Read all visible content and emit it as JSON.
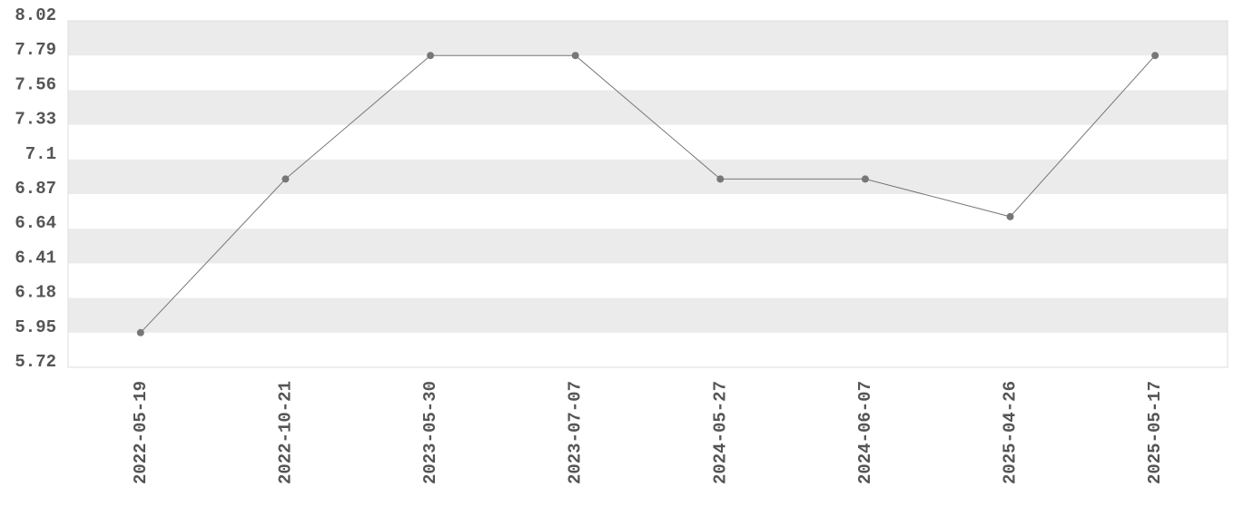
{
  "chart_data": {
    "type": "line",
    "categories": [
      "2022-05-19",
      "2022-10-21",
      "2023-05-30",
      "2023-07-07",
      "2024-05-27",
      "2024-06-07",
      "2025-04-26",
      "2025-05-17"
    ],
    "values": [
      5.95,
      6.97,
      7.79,
      7.79,
      6.97,
      6.97,
      6.72,
      7.79
    ],
    "color": "#777777",
    "ylim": [
      5.72,
      8.02
    ],
    "yticks": [
      5.72,
      5.95,
      6.18,
      6.41,
      6.64,
      6.87,
      7.1,
      7.33,
      7.56,
      7.79,
      8.02
    ],
    "grid": true,
    "grid_color": "#ebebeb"
  }
}
